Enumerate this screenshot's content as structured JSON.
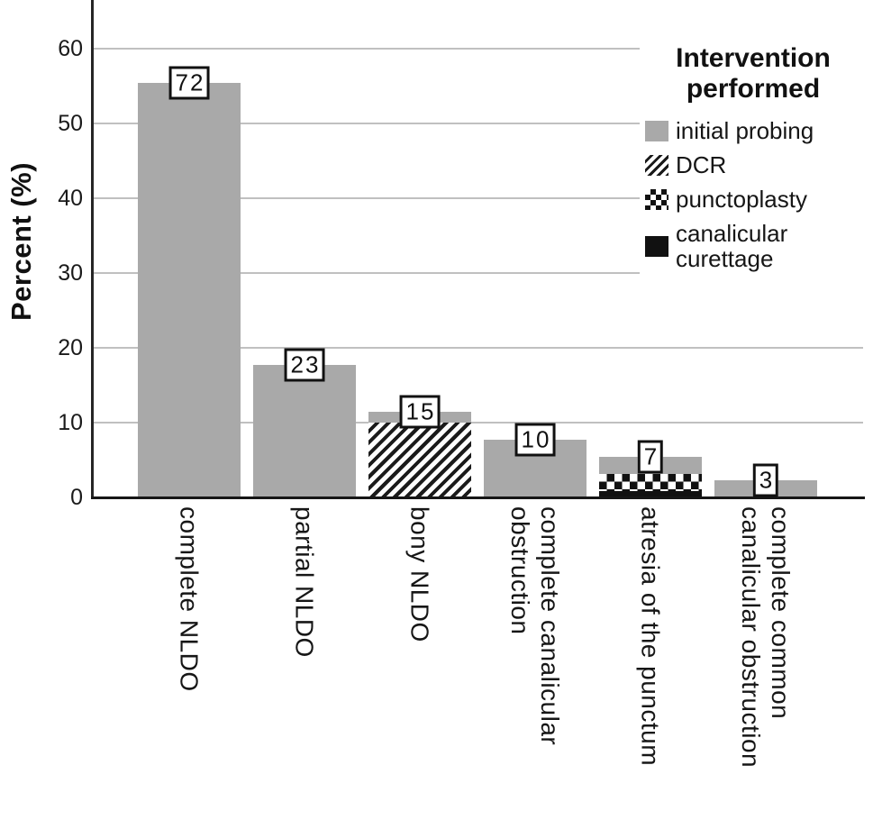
{
  "y_axis": {
    "title": "Percent (%)",
    "ticks": [
      0,
      10,
      20,
      30,
      40,
      50,
      60
    ]
  },
  "legend": {
    "title": "Intervention\nperformed",
    "items": [
      {
        "label": "initial probing",
        "swatch": "gray"
      },
      {
        "label": "DCR",
        "swatch": "hatch"
      },
      {
        "label": "punctoplasty",
        "swatch": "checker"
      },
      {
        "label": "canalicular\ncurettage",
        "swatch": "black"
      }
    ]
  },
  "bars": [
    {
      "category": "complete NLDO",
      "count_label": "72",
      "segments": [
        {
          "swatch": "gray",
          "value": 55.4
        }
      ]
    },
    {
      "category": "partial NLDO",
      "count_label": "23",
      "segments": [
        {
          "swatch": "gray",
          "value": 17.7
        }
      ]
    },
    {
      "category": "bony NLDO",
      "count_label": "15",
      "segments": [
        {
          "swatch": "hatch",
          "value": 10.0
        },
        {
          "swatch": "gray",
          "value": 1.5
        }
      ]
    },
    {
      "category": "complete canalicular\nobstruction",
      "count_label": "10",
      "segments": [
        {
          "swatch": "gray",
          "value": 7.7
        }
      ]
    },
    {
      "category": "atresia of the punctum",
      "count_label": "7",
      "segments": [
        {
          "swatch": "black",
          "value": 0.8
        },
        {
          "swatch": "checker",
          "value": 2.3
        },
        {
          "swatch": "gray",
          "value": 2.3
        }
      ]
    },
    {
      "category": "complete common\ncanalicular obstruction",
      "count_label": "3",
      "segments": [
        {
          "swatch": "gray",
          "value": 2.3
        }
      ]
    }
  ],
  "chart_data": {
    "type": "bar",
    "stacked": true,
    "title": "",
    "xlabel": "",
    "ylabel": "Percent (%)",
    "ylim": [
      0,
      66.5
    ],
    "grid": true,
    "legend_position": "upper right",
    "legend_title": "Intervention performed",
    "categories": [
      "complete NLDO",
      "partial NLDO",
      "bony NLDO",
      "complete canalicular obstruction",
      "atresia of the punctum",
      "complete common canalicular obstruction"
    ],
    "series": [
      {
        "name": "initial probing",
        "pattern": "solid gray",
        "values": [
          55.4,
          17.7,
          1.5,
          7.7,
          2.3,
          2.3
        ]
      },
      {
        "name": "DCR",
        "pattern": "diagonal hatch",
        "values": [
          0,
          0,
          10.0,
          0,
          0,
          0
        ]
      },
      {
        "name": "punctoplasty",
        "pattern": "checkerboard",
        "values": [
          0,
          0,
          0,
          0,
          2.3,
          0
        ]
      },
      {
        "name": "canalicular curettage",
        "pattern": "solid black",
        "values": [
          0,
          0,
          0,
          0,
          0.8,
          0
        ]
      }
    ],
    "bar_total_percents": [
      55.4,
      17.7,
      11.5,
      7.7,
      5.4,
      2.3
    ],
    "bar_count_labels": [
      "72",
      "23",
      "15",
      "10",
      "7",
      "3"
    ]
  },
  "colors": {
    "bar_gray": "#a9a9a9",
    "pattern_black": "#1a1a1a",
    "gridline": "#c0c0c0",
    "axis": "#262626",
    "text": "#161616",
    "background": "#ffffff"
  }
}
